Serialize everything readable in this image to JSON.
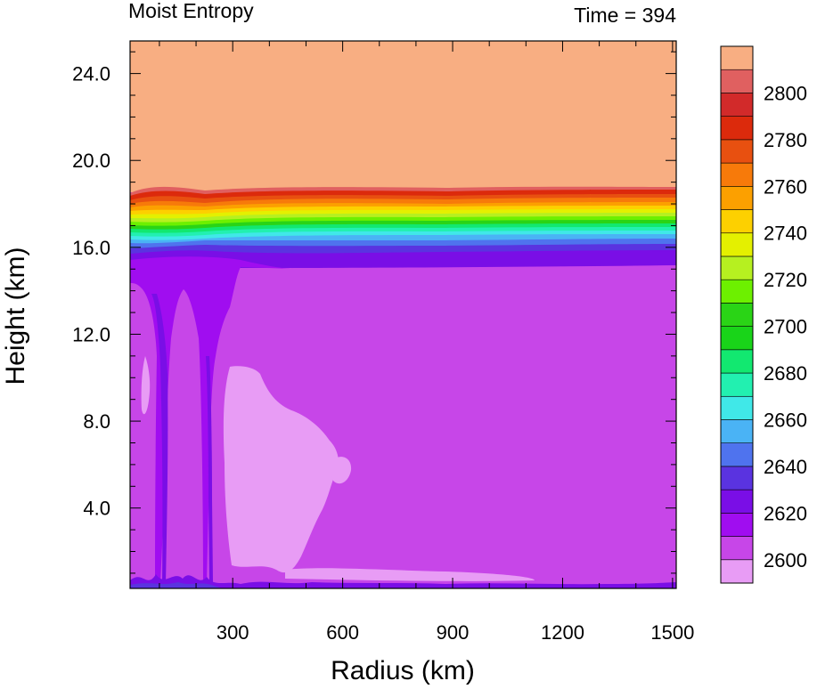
{
  "chart_data": {
    "type": "heatmap",
    "title": "Moist Entropy",
    "time_label": "Time = 394",
    "xlabel": "Radius (km)",
    "ylabel": "Height (km)",
    "xlim": [
      20,
      1510
    ],
    "ylim": [
      0.3,
      25.5
    ],
    "x_ticks": [
      300,
      600,
      900,
      1200,
      1500
    ],
    "x_tick_labels": [
      "300",
      "600",
      "900",
      "1200",
      "1500"
    ],
    "y_ticks": [
      4,
      8,
      12,
      16,
      20,
      24
    ],
    "y_tick_labels": [
      "4.0",
      "8.0",
      "12.0",
      "16.0",
      "20.0",
      "24.0"
    ],
    "colorbar": {
      "levels": [
        2600,
        2610,
        2620,
        2630,
        2640,
        2650,
        2660,
        2670,
        2680,
        2690,
        2700,
        2710,
        2720,
        2730,
        2740,
        2750,
        2760,
        2770,
        2780,
        2790,
        2800
      ],
      "labels": [
        "2600",
        "2620",
        "2640",
        "2660",
        "2680",
        "2700",
        "2720",
        "2740",
        "2760",
        "2780",
        "2800"
      ],
      "colors": [
        "#e89cf5",
        "#c746e8",
        "#a00df0",
        "#7a0ee6",
        "#5a33e0",
        "#4f73ee",
        "#4ab3f5",
        "#40e8e8",
        "#22f0b0",
        "#12e870",
        "#19d419",
        "#2ad416",
        "#6df000",
        "#b6f020",
        "#e4f000",
        "#fdd000",
        "#fca000",
        "#f77a0a",
        "#e85010",
        "#dc2a0c",
        "#d22a2a",
        "#e06060",
        "#f8ae82"
      ]
    }
  }
}
